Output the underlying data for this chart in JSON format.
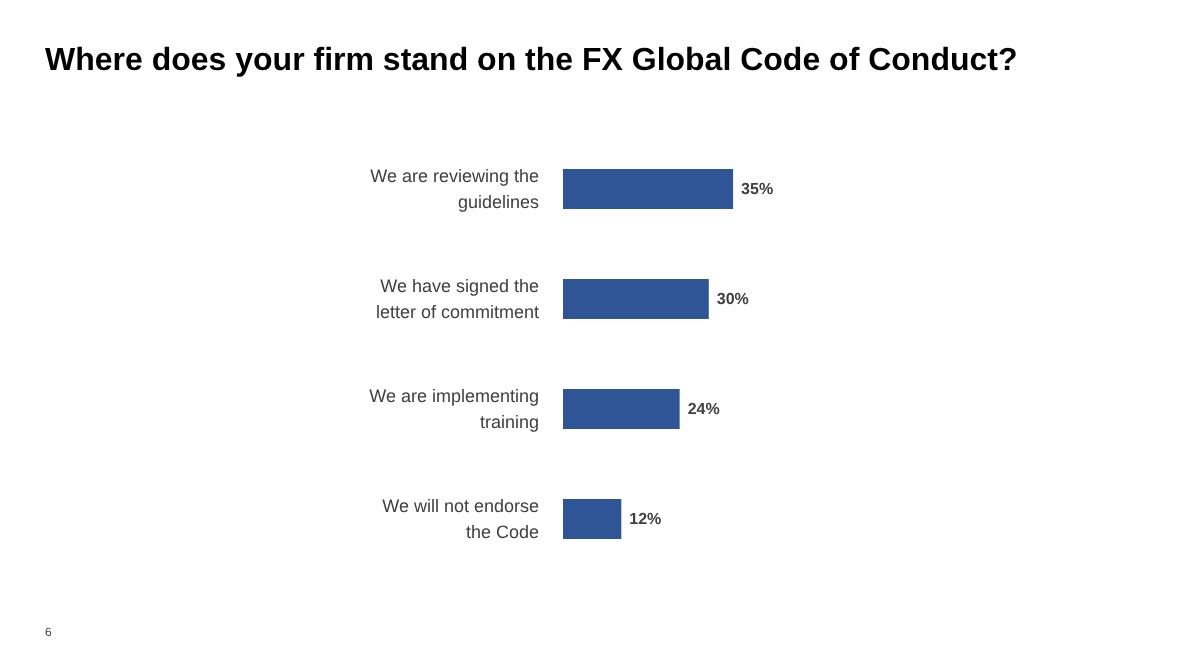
{
  "chart_data": {
    "type": "bar",
    "orientation": "horizontal",
    "title": "Where does your firm stand on the FX Global Code of Conduct?",
    "categories": [
      "We are reviewing the guidelines",
      "We have signed the letter of commitment",
      "We are implementing training",
      "We will not endorse the Code"
    ],
    "values": [
      35,
      30,
      24,
      12
    ],
    "color": "#2f5597",
    "value_labels": [
      "35%",
      "30%",
      "24%",
      "12%"
    ],
    "annotations": [
      "6"
    ],
    "grid": false
  }
}
